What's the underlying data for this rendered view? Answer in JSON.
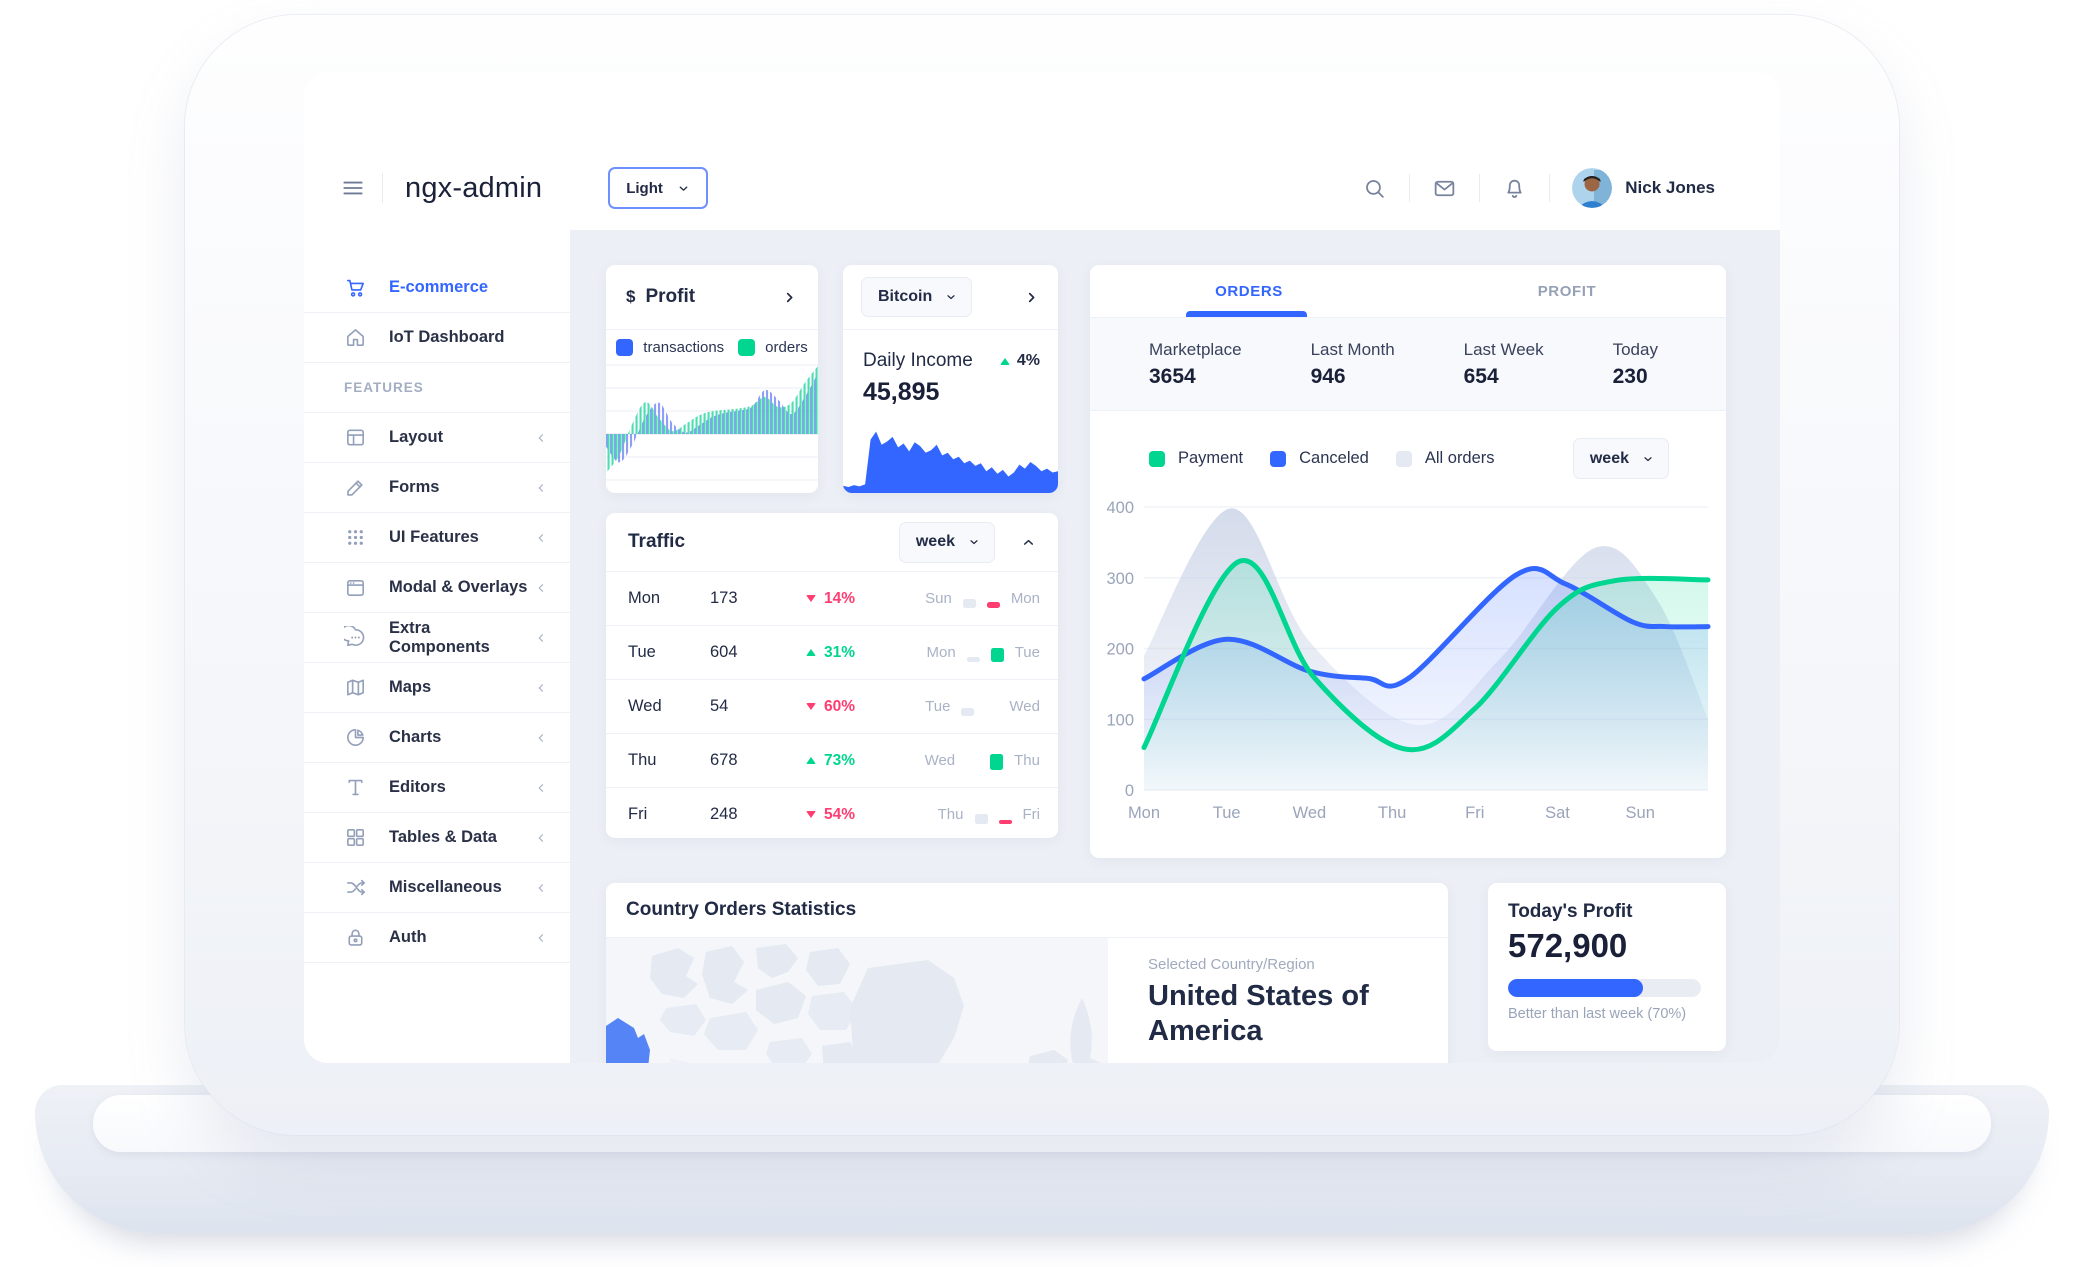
{
  "colors": {
    "primary": "#3366ff",
    "success": "#00d68f",
    "danger": "#ff3d71",
    "all_orders": "#dfe5f0",
    "muted_bar": "#e4e9f2",
    "map_highlight": "#5584f6"
  },
  "header": {
    "app_title": "ngx-admin",
    "theme_select": {
      "value": "Light"
    },
    "user": {
      "name": "Nick Jones"
    }
  },
  "sidebar": {
    "items": [
      {
        "label": "E-commerce",
        "icon": "shopping-cart",
        "active": true,
        "expandable": false
      },
      {
        "label": "IoT Dashboard",
        "icon": "home",
        "active": false,
        "expandable": false
      },
      {
        "type": "section",
        "label": "FEATURES"
      },
      {
        "label": "Layout",
        "icon": "layout",
        "expandable": true
      },
      {
        "label": "Forms",
        "icon": "edit",
        "expandable": true
      },
      {
        "label": "UI Features",
        "icon": "keypad",
        "expandable": true
      },
      {
        "label": "Modal & Overlays",
        "icon": "browser",
        "expandable": true
      },
      {
        "label": "Extra Components",
        "icon": "message-circle",
        "expandable": true
      },
      {
        "label": "Maps",
        "icon": "map",
        "expandable": true
      },
      {
        "label": "Charts",
        "icon": "pie-chart",
        "expandable": true
      },
      {
        "label": "Editors",
        "icon": "text",
        "expandable": true
      },
      {
        "label": "Tables & Data",
        "icon": "grid",
        "expandable": true
      },
      {
        "label": "Miscellaneous",
        "icon": "shuffle",
        "expandable": true
      },
      {
        "label": "Auth",
        "icon": "lock",
        "expandable": true
      }
    ]
  },
  "profit_card": {
    "currency": "$",
    "title": "Profit",
    "legend": [
      {
        "label": "transactions",
        "color": "#3366ff"
      },
      {
        "label": "orders",
        "color": "#00d68f"
      }
    ]
  },
  "bitcoin_card": {
    "select_value": "Bitcoin",
    "metric_label": "Daily Income",
    "metric_value": "45,895",
    "delta_pct": "4%",
    "delta_dir": "up"
  },
  "orders_card": {
    "tabs": [
      {
        "label": "ORDERS",
        "active": true
      },
      {
        "label": "PROFIT",
        "active": false
      }
    ],
    "stats": [
      {
        "label": "Marketplace",
        "value": "3654"
      },
      {
        "label": "Last Month",
        "value": "946"
      },
      {
        "label": "Last Week",
        "value": "654"
      },
      {
        "label": "Today",
        "value": "230"
      }
    ],
    "legend": [
      {
        "label": "Payment",
        "color": "#00d68f"
      },
      {
        "label": "Canceled",
        "color": "#3366ff"
      },
      {
        "label": "All orders",
        "color": "#e4e9f2"
      }
    ],
    "period_select": "week"
  },
  "traffic_card": {
    "title": "Traffic",
    "period_select": "week",
    "rows": [
      {
        "day": "Mon",
        "value": "173",
        "dir": "down",
        "pct": "14%",
        "from": "Sun",
        "to": "Mon",
        "from_bar": 9,
        "to_bar": 6,
        "to_color": "danger"
      },
      {
        "day": "Tue",
        "value": "604",
        "dir": "up",
        "pct": "31%",
        "from": "Mon",
        "to": "Tue",
        "from_bar": 5,
        "to_bar": 14,
        "to_color": "success"
      },
      {
        "day": "Wed",
        "value": "54",
        "dir": "down",
        "pct": "60%",
        "from": "Tue",
        "to": "Wed",
        "from_bar": 8,
        "to_bar": 0,
        "to_color": "danger"
      },
      {
        "day": "Thu",
        "value": "678",
        "dir": "up",
        "pct": "73%",
        "from": "Wed",
        "to": "Thu",
        "from_bar": 0,
        "to_bar": 16,
        "to_color": "success"
      },
      {
        "day": "Fri",
        "value": "248",
        "dir": "down",
        "pct": "54%",
        "from": "Thu",
        "to": "Fri",
        "from_bar": 10,
        "to_bar": 4,
        "to_color": "danger"
      }
    ]
  },
  "country_card": {
    "title": "Country Orders Statistics",
    "selected_label": "Selected Country/Region",
    "selected_country": "United States of America"
  },
  "today_profit_card": {
    "title": "Today's Profit",
    "value": "572,900",
    "progress_pct": 70,
    "caption": "Better than last week (70%)"
  },
  "chart_data": [
    {
      "id": "orders_weekly",
      "type": "line",
      "title": "Orders by week",
      "x_ticks": [
        "Mon",
        "Tue",
        "Wed",
        "Thu",
        "Fri",
        "Sat",
        "Sun"
      ],
      "y_ticks": [
        0,
        100,
        200,
        300,
        400
      ],
      "ylim": [
        0,
        400
      ],
      "xlim": [
        0,
        6.82
      ],
      "grid": true,
      "legend_position": "top",
      "series": [
        {
          "name": "All orders",
          "style": "area",
          "color": "#dbe1ee",
          "points": [
            [
              0,
              190
            ],
            [
              1.05,
              398
            ],
            [
              2,
              210
            ],
            [
              3.3,
              92
            ],
            [
              4.3,
              185
            ],
            [
              5.45,
              342
            ],
            [
              6.2,
              270
            ],
            [
              6.82,
              100
            ]
          ]
        },
        {
          "name": "Canceled",
          "style": "line",
          "color": "#3366ff",
          "points": [
            [
              0,
              157
            ],
            [
              1,
              213
            ],
            [
              2,
              168
            ],
            [
              2.7,
              158
            ],
            [
              3.2,
              158
            ],
            [
              4.5,
              304
            ],
            [
              5.1,
              291
            ],
            [
              5.9,
              238
            ],
            [
              6.3,
              231
            ],
            [
              6.82,
              231
            ]
          ]
        },
        {
          "name": "Payment",
          "style": "line",
          "color": "#00d68f",
          "points": [
            [
              0,
              60
            ],
            [
              1.15,
              323
            ],
            [
              2.05,
              160
            ],
            [
              3.15,
              58
            ],
            [
              4,
              115
            ],
            [
              5,
              258
            ],
            [
              5.7,
              296
            ],
            [
              6.82,
              297
            ]
          ]
        }
      ]
    },
    {
      "id": "profit_mini",
      "type": "area",
      "title": "Profit: transactions vs orders",
      "ylim": [
        -60,
        100
      ],
      "baseline": 0,
      "series": [
        {
          "name": "transactions",
          "color": "#3366ff",
          "values": [
            -18,
            -40,
            -15,
            25,
            44,
            16,
            2,
            12,
            24,
            30,
            33,
            38,
            62,
            48,
            28,
            52,
            86
          ]
        },
        {
          "name": "orders",
          "color": "#00d68f",
          "values": [
            -55,
            -30,
            15,
            45,
            22,
            4,
            14,
            26,
            32,
            34,
            36,
            40,
            52,
            38,
            44,
            72,
            96
          ]
        }
      ]
    },
    {
      "id": "bitcoin_daily",
      "type": "area",
      "title": "Bitcoin daily income",
      "ylim": [
        0,
        100
      ],
      "series": [
        {
          "name": "Daily Income",
          "color": "#3366ff",
          "values": [
            8,
            6,
            9,
            7,
            10,
            78,
            90,
            70,
            75,
            82,
            66,
            72,
            60,
            74,
            68,
            58,
            62,
            70,
            54,
            58,
            48,
            52,
            42,
            46,
            38,
            42,
            30,
            36,
            26,
            32,
            22,
            28,
            40,
            34,
            44,
            38,
            30,
            34,
            28,
            30
          ]
        }
      ]
    }
  ]
}
